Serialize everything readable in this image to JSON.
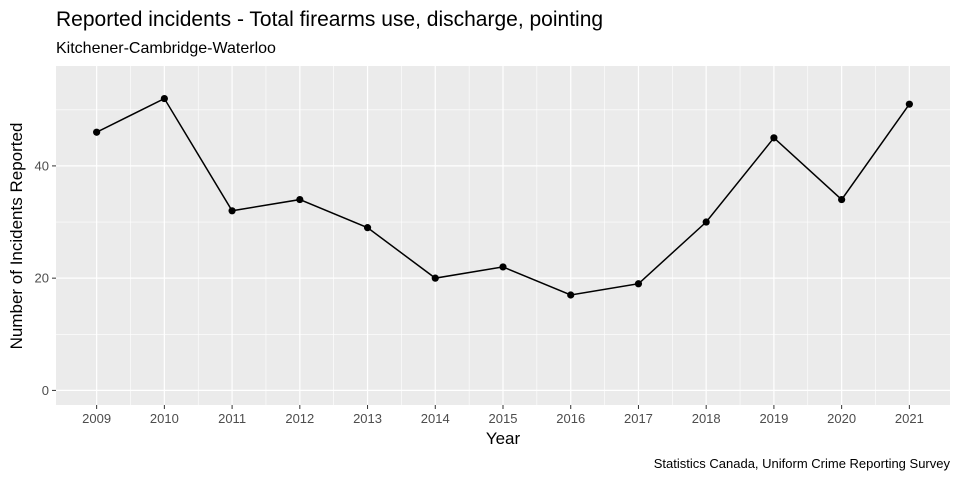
{
  "chart_data": {
    "type": "line",
    "title": "Reported incidents - Total firearms use, discharge, pointing",
    "subtitle": "Kitchener-Cambridge-Waterloo",
    "xlabel": "Year",
    "ylabel": "Number of Incidents Reported",
    "caption": "Statistics Canada, Uniform Crime Reporting Survey",
    "x": [
      2009,
      2010,
      2011,
      2012,
      2013,
      2014,
      2015,
      2016,
      2017,
      2018,
      2019,
      2020,
      2021
    ],
    "values": [
      46,
      52,
      32,
      34,
      29,
      20,
      22,
      17,
      19,
      30,
      45,
      34,
      51
    ],
    "xlim": [
      2008.4,
      2021.6
    ],
    "ylim": [
      -2.6,
      57.8
    ],
    "y_ticks": [
      0,
      20,
      40
    ],
    "y_tick_labels": [
      "0",
      "20",
      "40"
    ],
    "x_tick_labels": [
      "2009",
      "2010",
      "2011",
      "2012",
      "2013",
      "2014",
      "2015",
      "2016",
      "2017",
      "2018",
      "2019",
      "2020",
      "2021"
    ],
    "grid": true,
    "legend": "none",
    "colors": {
      "panel": "#ebebeb",
      "grid": "#ffffff",
      "line": "#000000",
      "point": "#000000"
    }
  }
}
